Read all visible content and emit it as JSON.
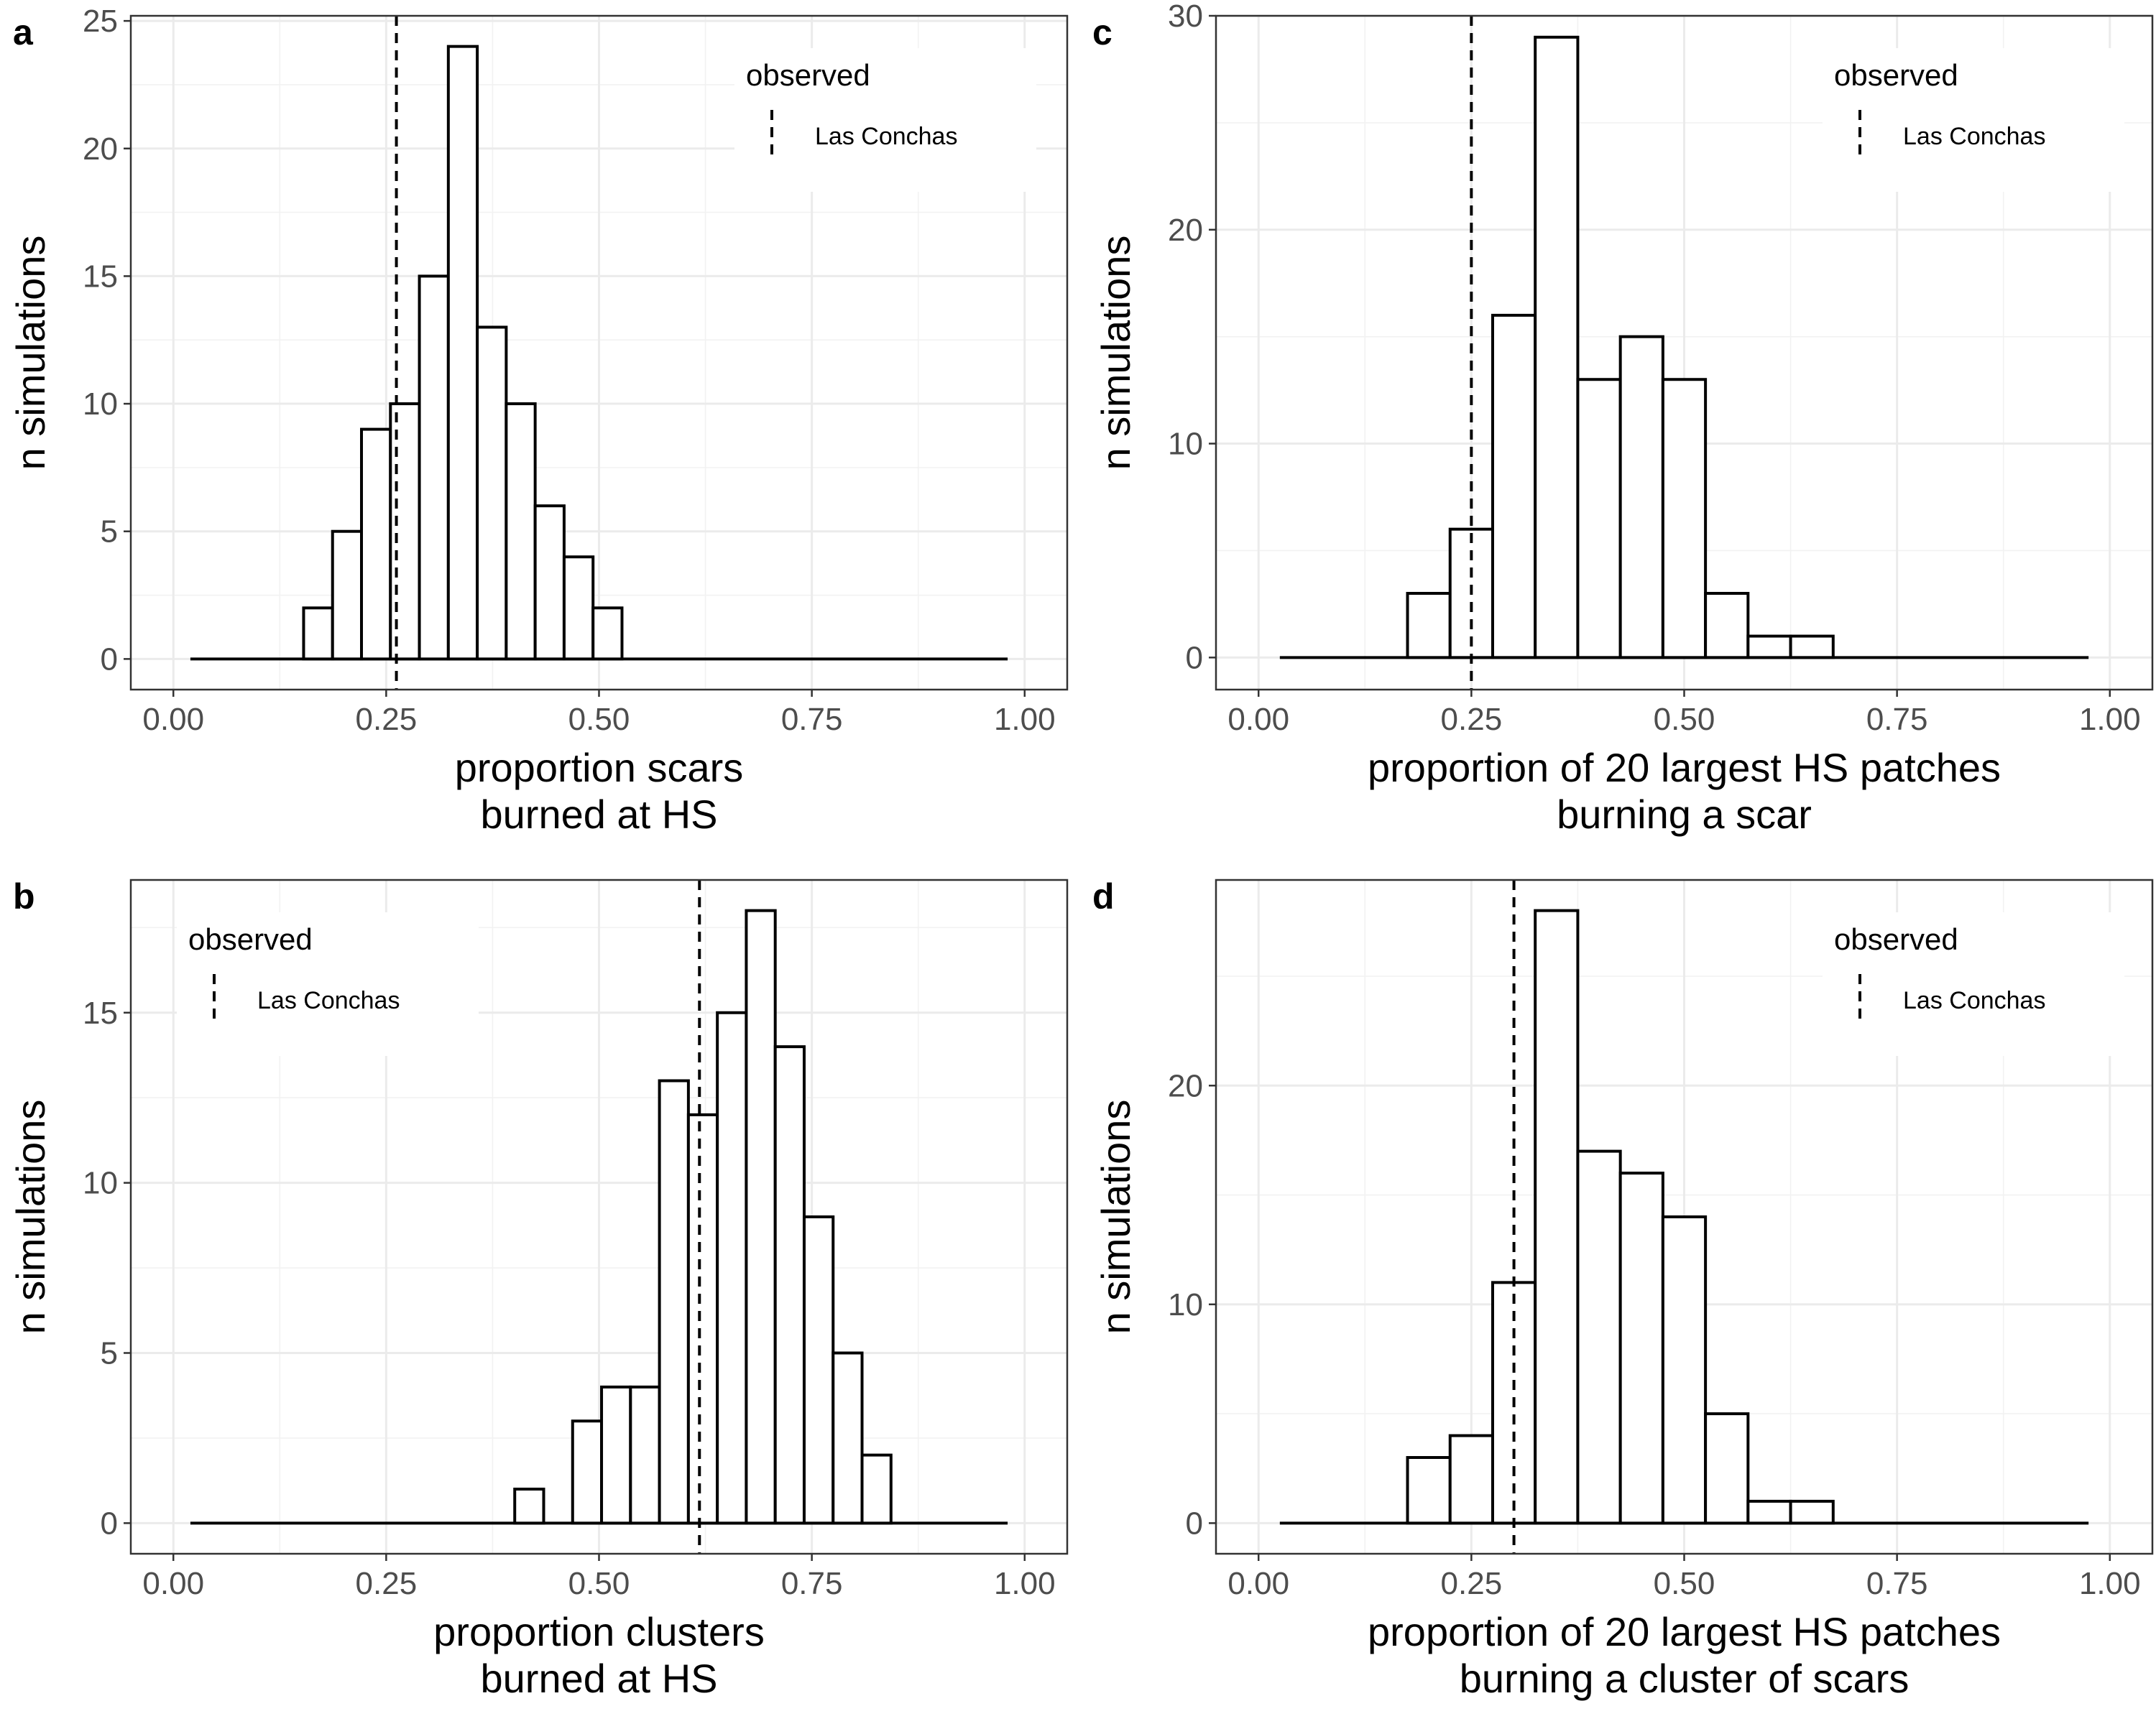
{
  "chart_data": [
    {
      "panel": "a",
      "type": "bar",
      "xlabel": [
        "proportion scars",
        "burned at HS"
      ],
      "ylabel": "n simulations",
      "xlim": [
        -0.05,
        1.05
      ],
      "ylim": [
        -1.2,
        25.2
      ],
      "xticks": [
        0.0,
        0.25,
        0.5,
        0.75,
        1.0
      ],
      "xtick_labels": [
        "0.00",
        "0.25",
        "0.50",
        "0.75",
        "1.00"
      ],
      "yticks": [
        0,
        5,
        10,
        15,
        20,
        25
      ],
      "ytick_labels": [
        "0",
        "5",
        "10",
        "15",
        "20",
        "25"
      ],
      "bin_width": 0.034,
      "bins": [
        {
          "x": 0.17,
          "count": 2
        },
        {
          "x": 0.204,
          "count": 5
        },
        {
          "x": 0.238,
          "count": 9
        },
        {
          "x": 0.272,
          "count": 10
        },
        {
          "x": 0.306,
          "count": 15
        },
        {
          "x": 0.34,
          "count": 24
        },
        {
          "x": 0.374,
          "count": 13
        },
        {
          "x": 0.408,
          "count": 10
        },
        {
          "x": 0.442,
          "count": 6
        },
        {
          "x": 0.476,
          "count": 4
        },
        {
          "x": 0.51,
          "count": 2
        }
      ],
      "baseline_range": [
        0.02,
        0.98
      ],
      "observed": 0.262,
      "legend": {
        "title": "observed",
        "label": "Las Conchas",
        "position": "top-right"
      },
      "grid": true
    },
    {
      "panel": "b",
      "type": "bar",
      "xlabel": [
        "proportion clusters",
        "burned at HS"
      ],
      "ylabel": "n simulations",
      "xlim": [
        -0.05,
        1.05
      ],
      "ylim": [
        -0.9,
        18.9
      ],
      "xticks": [
        0.0,
        0.25,
        0.5,
        0.75,
        1.0
      ],
      "xtick_labels": [
        "0.00",
        "0.25",
        "0.50",
        "0.75",
        "1.00"
      ],
      "yticks": [
        0,
        5,
        10,
        15
      ],
      "ytick_labels": [
        "0",
        "5",
        "10",
        "15"
      ],
      "bin_width": 0.034,
      "bins": [
        {
          "x": 0.418,
          "count": 1
        },
        {
          "x": 0.486,
          "count": 3
        },
        {
          "x": 0.52,
          "count": 4
        },
        {
          "x": 0.554,
          "count": 4
        },
        {
          "x": 0.588,
          "count": 13
        },
        {
          "x": 0.622,
          "count": 12
        },
        {
          "x": 0.656,
          "count": 15
        },
        {
          "x": 0.69,
          "count": 18
        },
        {
          "x": 0.724,
          "count": 14
        },
        {
          "x": 0.758,
          "count": 9
        },
        {
          "x": 0.792,
          "count": 5
        },
        {
          "x": 0.826,
          "count": 2
        }
      ],
      "baseline_range": [
        0.02,
        0.98
      ],
      "observed": 0.618,
      "legend": {
        "title": "observed",
        "label": "Las Conchas",
        "position": "top-left"
      },
      "grid": true
    },
    {
      "panel": "c",
      "type": "bar",
      "xlabel": [
        "proportion of 20 largest HS patches",
        "burning a scar"
      ],
      "ylabel": "n simulations",
      "xlim": [
        -0.05,
        1.05
      ],
      "ylim": [
        -1.5,
        30.0
      ],
      "xticks": [
        0.0,
        0.25,
        0.5,
        0.75,
        1.0
      ],
      "xtick_labels": [
        "0.00",
        "0.25",
        "0.50",
        "0.75",
        "1.00"
      ],
      "yticks": [
        0,
        10,
        20,
        30
      ],
      "ytick_labels": [
        "0",
        "10",
        "20",
        "30"
      ],
      "bin_width": 0.05,
      "bins": [
        {
          "x": 0.2,
          "count": 3
        },
        {
          "x": 0.25,
          "count": 6
        },
        {
          "x": 0.3,
          "count": 16
        },
        {
          "x": 0.35,
          "count": 29
        },
        {
          "x": 0.4,
          "count": 13
        },
        {
          "x": 0.45,
          "count": 15
        },
        {
          "x": 0.5,
          "count": 13
        },
        {
          "x": 0.55,
          "count": 3
        },
        {
          "x": 0.6,
          "count": 1
        },
        {
          "x": 0.65,
          "count": 1
        }
      ],
      "baseline_range": [
        0.025,
        0.975
      ],
      "observed": 0.25,
      "legend": {
        "title": "observed",
        "label": "Las Conchas",
        "position": "top-right"
      },
      "grid": true
    },
    {
      "panel": "d",
      "type": "bar",
      "xlabel": [
        "proportion of 20 largest HS patches",
        "burning a cluster of scars"
      ],
      "ylabel": "n simulations",
      "xlim": [
        -0.05,
        1.05
      ],
      "ylim": [
        -1.4,
        29.4
      ],
      "xticks": [
        0.0,
        0.25,
        0.5,
        0.75,
        1.0
      ],
      "xtick_labels": [
        "0.00",
        "0.25",
        "0.50",
        "0.75",
        "1.00"
      ],
      "yticks": [
        0,
        10,
        20
      ],
      "ytick_labels": [
        "0",
        "10",
        "20"
      ],
      "bin_width": 0.05,
      "bins": [
        {
          "x": 0.2,
          "count": 3
        },
        {
          "x": 0.25,
          "count": 4
        },
        {
          "x": 0.3,
          "count": 11
        },
        {
          "x": 0.35,
          "count": 28
        },
        {
          "x": 0.4,
          "count": 17
        },
        {
          "x": 0.45,
          "count": 16
        },
        {
          "x": 0.5,
          "count": 14
        },
        {
          "x": 0.55,
          "count": 5
        },
        {
          "x": 0.6,
          "count": 1
        },
        {
          "x": 0.65,
          "count": 1
        }
      ],
      "baseline_range": [
        0.025,
        0.975
      ],
      "observed": 0.3,
      "legend": {
        "title": "observed",
        "label": "Las Conchas",
        "position": "top-right"
      },
      "grid": true
    }
  ]
}
